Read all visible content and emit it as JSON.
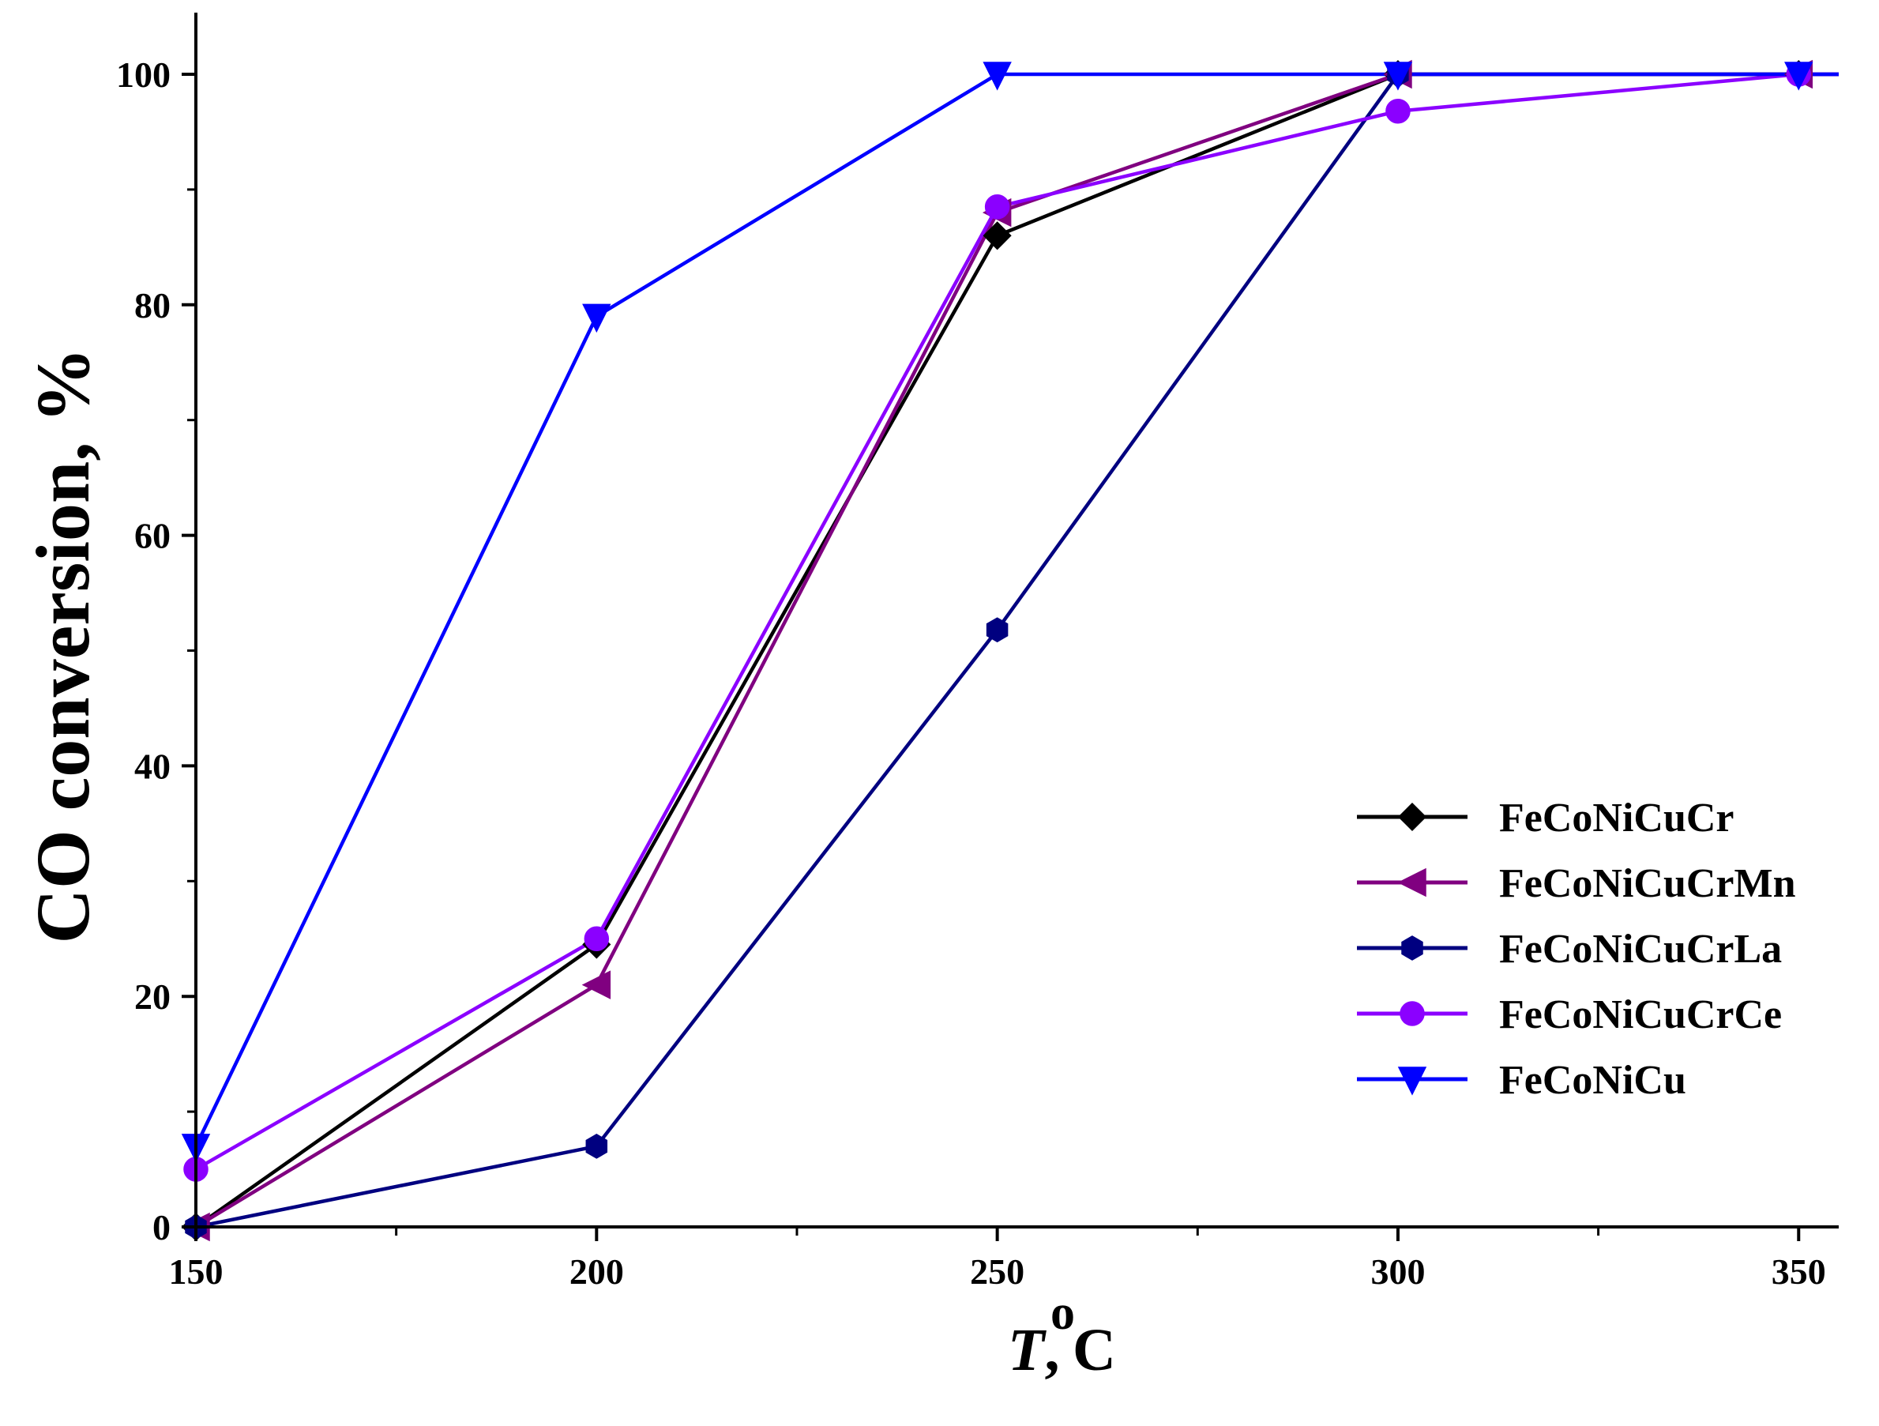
{
  "chart_data": {
    "type": "line",
    "title": "",
    "ylabel": "CO conversion, %",
    "xlabel": {
      "symbol": "T",
      "separator": ",",
      "degree": "o",
      "unit": "C"
    },
    "xlim": [
      150,
      355
    ],
    "ylim": [
      0,
      100
    ],
    "x_ticks": [
      150,
      200,
      250,
      300,
      350
    ],
    "x_tick_labels": [
      "150",
      "200",
      "250",
      "300",
      "350"
    ],
    "x_minor_ticks": [
      175,
      225,
      275,
      325
    ],
    "y_ticks": [
      0,
      20,
      40,
      60,
      80,
      100
    ],
    "y_tick_labels": [
      "0",
      "20",
      "40",
      "60",
      "80",
      "100"
    ],
    "y_minor_ticks": [
      10,
      30,
      50,
      70,
      90
    ],
    "grid": false,
    "legend_position": "lower-right",
    "x": [
      150,
      200,
      250,
      300,
      350
    ],
    "series": [
      {
        "name": "FeCoNiCuCr",
        "color": "#000000",
        "marker": "diamond",
        "values": [
          0,
          24.5,
          86,
          100,
          100
        ]
      },
      {
        "name": "FeCoNiCuCrMn",
        "color": "#800080",
        "marker": "triangle-left",
        "values": [
          0,
          21,
          88,
          100,
          100
        ]
      },
      {
        "name": "FeCoNiCuCrLa",
        "color": "#000080",
        "marker": "hexagon",
        "values": [
          0,
          7,
          51.8,
          100,
          100
        ]
      },
      {
        "name": "FeCoNiCuCrCe",
        "color": "#8B00FF",
        "marker": "circle",
        "values": [
          5,
          25,
          88.5,
          96.8,
          100
        ]
      },
      {
        "name": "FeCoNiCu",
        "color": "#0000FF",
        "marker": "triangle-down",
        "values": [
          7,
          79,
          100,
          100,
          100
        ]
      }
    ]
  }
}
